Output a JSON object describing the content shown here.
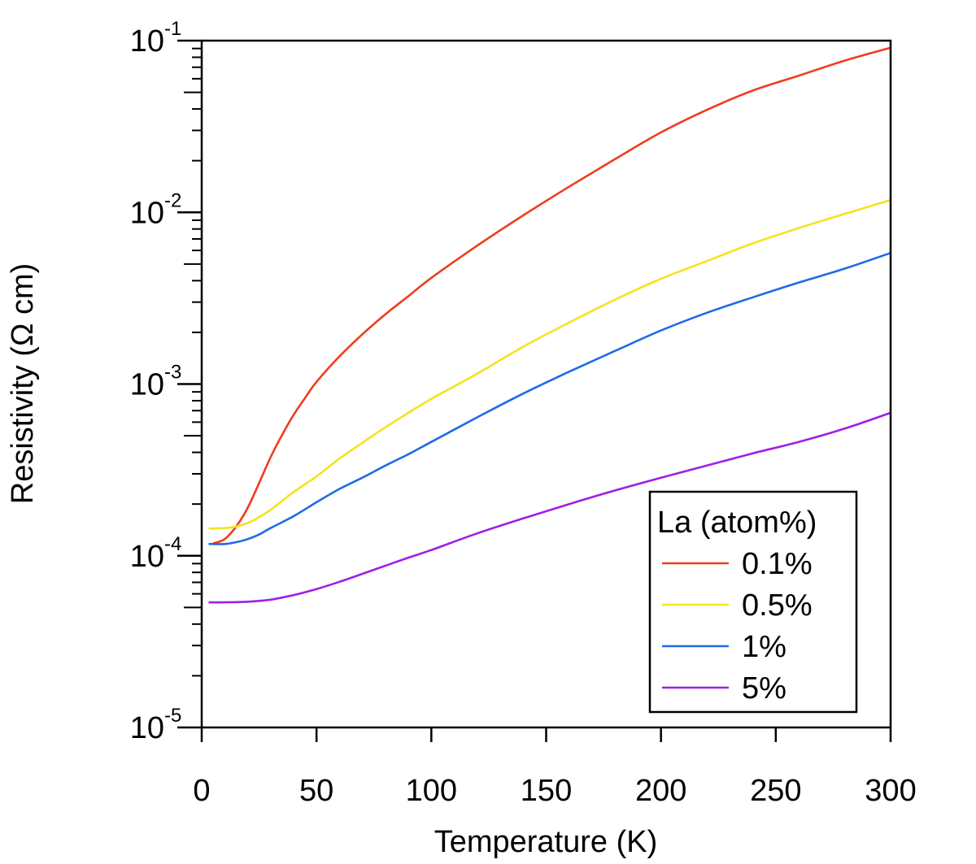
{
  "chart_data": {
    "type": "line",
    "xlabel": "Temperature (K)",
    "ylabel": "Resistivity (Ω cm)",
    "xlim": [
      0,
      300
    ],
    "ylim": [
      1e-05,
      0.1
    ],
    "yscale": "log",
    "grid": false,
    "x_ticks": [
      {
        "value": 0,
        "label": "0"
      },
      {
        "value": 50,
        "label": "50"
      },
      {
        "value": 100,
        "label": "100"
      },
      {
        "value": 150,
        "label": "150"
      },
      {
        "value": 200,
        "label": "200"
      },
      {
        "value": 250,
        "label": "250"
      },
      {
        "value": 300,
        "label": "300"
      }
    ],
    "y_ticks": [
      {
        "value": 0.1,
        "base": "10",
        "exp": "-1"
      },
      {
        "value": 0.01,
        "base": "10",
        "exp": "-2"
      },
      {
        "value": 0.001,
        "base": "10",
        "exp": "-3"
      },
      {
        "value": 0.0001,
        "base": "10",
        "exp": "-4"
      },
      {
        "value": 1e-05,
        "base": "10",
        "exp": "-5"
      }
    ],
    "legend": {
      "title": "La (atom%)",
      "position": "bottom-right"
    },
    "series": [
      {
        "name": "0.1%",
        "color": "#f03c1e",
        "x": [
          5,
          10,
          15,
          20,
          25,
          30,
          35,
          40,
          45,
          50,
          60,
          70,
          80,
          90,
          100,
          120,
          140,
          160,
          180,
          200,
          220,
          240,
          260,
          280,
          300
        ],
        "y": [
          0.000118,
          0.000125,
          0.000148,
          0.00019,
          0.000265,
          0.000375,
          0.000505,
          0.00066,
          0.00083,
          0.00103,
          0.00145,
          0.00195,
          0.00255,
          0.00325,
          0.00415,
          0.0064,
          0.0096,
          0.0141,
          0.0204,
          0.0292,
          0.0395,
          0.0512,
          0.0625,
          0.0765,
          0.091
        ]
      },
      {
        "name": "0.5%",
        "color": "#f5e31e",
        "x": [
          3,
          10,
          15,
          20,
          25,
          30,
          40,
          50,
          60,
          70,
          80,
          90,
          100,
          120,
          140,
          160,
          180,
          200,
          220,
          240,
          260,
          280,
          300
        ],
        "y": [
          0.000144,
          0.000145,
          0.000148,
          0.000155,
          0.000168,
          0.000185,
          0.000235,
          0.00029,
          0.000368,
          0.000455,
          0.00056,
          0.00068,
          0.00082,
          0.00115,
          0.00165,
          0.00228,
          0.0031,
          0.0041,
          0.0052,
          0.0066,
          0.0081,
          0.0098,
          0.0118
        ]
      },
      {
        "name": "1%",
        "color": "#1e6be6",
        "x": [
          3,
          10,
          15,
          20,
          25,
          30,
          40,
          50,
          60,
          70,
          80,
          90,
          100,
          120,
          140,
          160,
          180,
          200,
          220,
          240,
          260,
          280,
          300
        ],
        "y": [
          0.000117,
          0.000117,
          0.00012,
          0.000125,
          0.000133,
          0.000145,
          0.00017,
          0.000205,
          0.000245,
          0.000285,
          0.000335,
          0.00039,
          0.00046,
          0.00064,
          0.00088,
          0.00118,
          0.00156,
          0.00205,
          0.0026,
          0.0032,
          0.0039,
          0.0047,
          0.0058
        ]
      },
      {
        "name": "5%",
        "color": "#a01ee6",
        "x": [
          3,
          10,
          20,
          30,
          40,
          50,
          60,
          70,
          80,
          90,
          100,
          120,
          140,
          160,
          180,
          200,
          220,
          240,
          260,
          280,
          300
        ],
        "y": [
          5.35e-05,
          5.35e-05,
          5.4e-05,
          5.55e-05,
          5.9e-05,
          6.4e-05,
          7.05e-05,
          7.85e-05,
          8.75e-05,
          9.75e-05,
          0.000108,
          0.000135,
          0.000165,
          0.0002,
          0.00024,
          0.000285,
          0.000335,
          0.000395,
          0.00046,
          0.00055,
          0.00068
        ]
      }
    ]
  }
}
